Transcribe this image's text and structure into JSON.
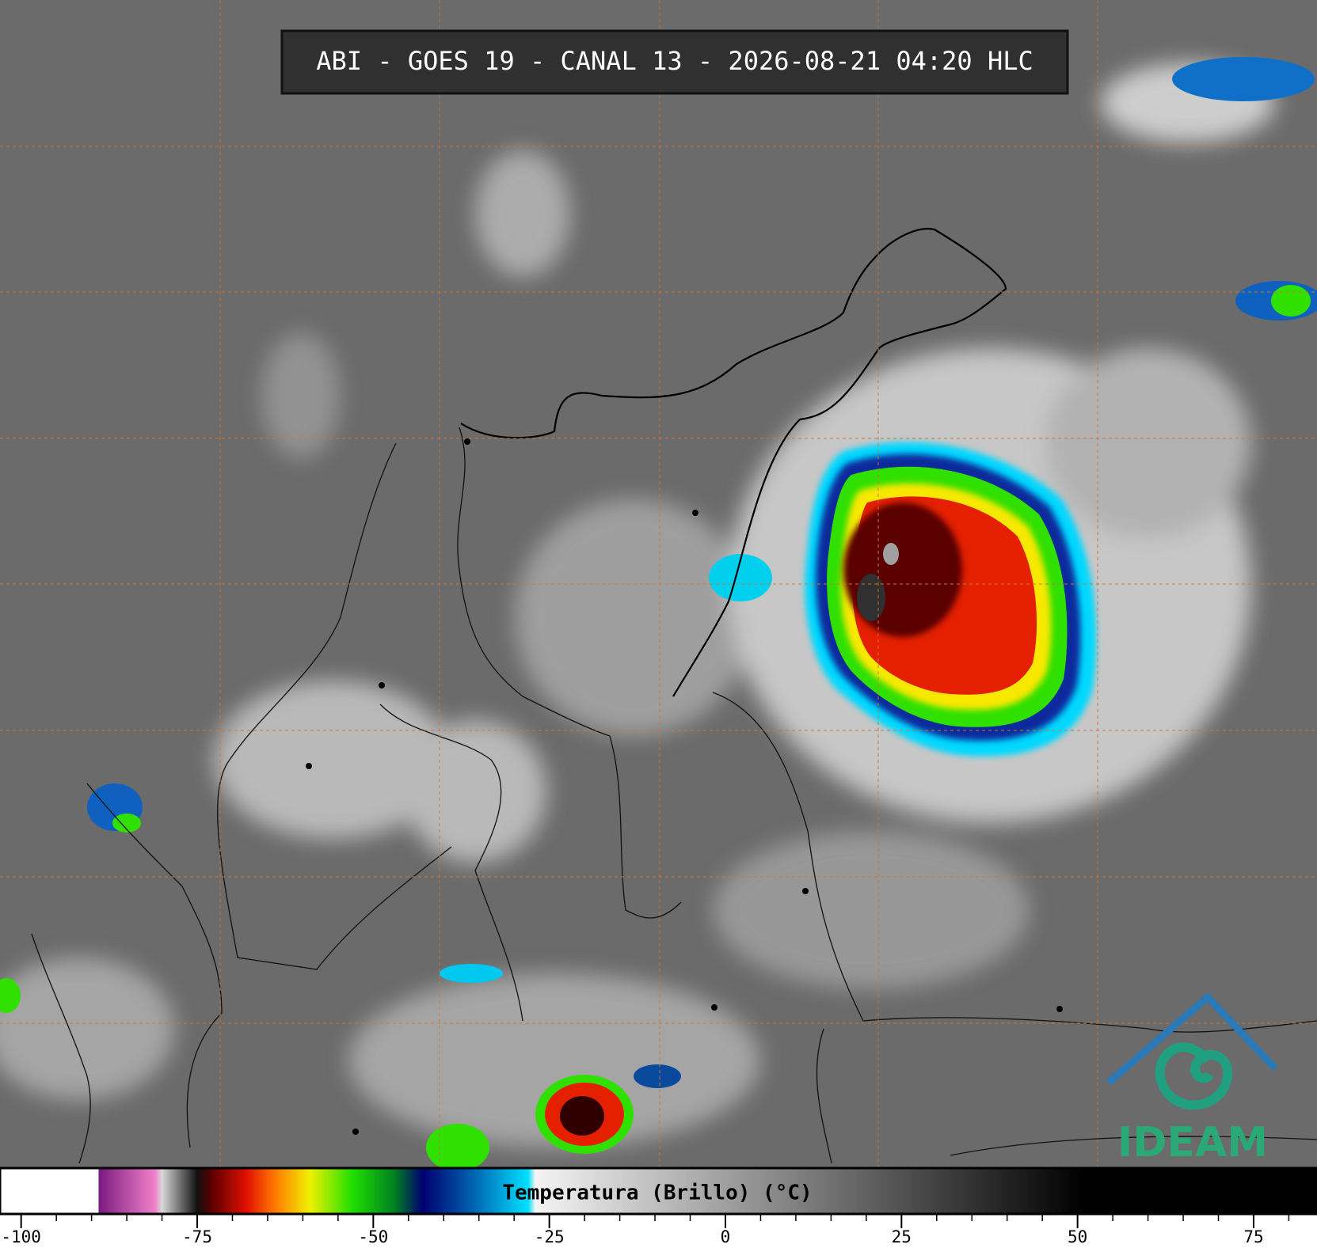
{
  "chart_data": {
    "type": "colorbar",
    "title": "ABI - GOES 19 - CANAL 13 - 2026-08-21 04:20 HLC",
    "colorbar_label": "Temperatura (Brillo) (°C)",
    "logo_text": "IDEAM",
    "xlim": [
      -103,
      84
    ],
    "xticks": [
      -100,
      -75,
      -50,
      -25,
      0,
      25,
      50,
      75
    ],
    "minor_xticks": [
      -95,
      -90,
      -85,
      -80,
      -70,
      -65,
      -60,
      -55,
      -45,
      -40,
      -35,
      -30,
      -20,
      -15,
      -10,
      -5,
      5,
      10,
      15,
      20,
      30,
      35,
      40,
      45,
      55,
      60,
      65,
      70,
      80
    ],
    "colormap": [
      {
        "value": -103,
        "color": "#ffffff"
      },
      {
        "value": -89,
        "color": "#ffffff"
      },
      {
        "value": -89,
        "color": "#7a1a80"
      },
      {
        "value": -81,
        "color": "#f080c8"
      },
      {
        "value": -80,
        "color": "#d8d8d8"
      },
      {
        "value": -75,
        "color": "#101010"
      },
      {
        "value": -73,
        "color": "#5a0000"
      },
      {
        "value": -68,
        "color": "#e01000"
      },
      {
        "value": -64,
        "color": "#ff7800"
      },
      {
        "value": -59,
        "color": "#f0f000"
      },
      {
        "value": -53,
        "color": "#20e000"
      },
      {
        "value": -47,
        "color": "#008020"
      },
      {
        "value": -43,
        "color": "#000070"
      },
      {
        "value": -36,
        "color": "#0060b0"
      },
      {
        "value": -28,
        "color": "#00e0ff"
      },
      {
        "value": -27,
        "color": "#f4f4f4"
      },
      {
        "value": 51,
        "color": "#000000"
      },
      {
        "value": 84,
        "color": "#000000"
      }
    ]
  }
}
